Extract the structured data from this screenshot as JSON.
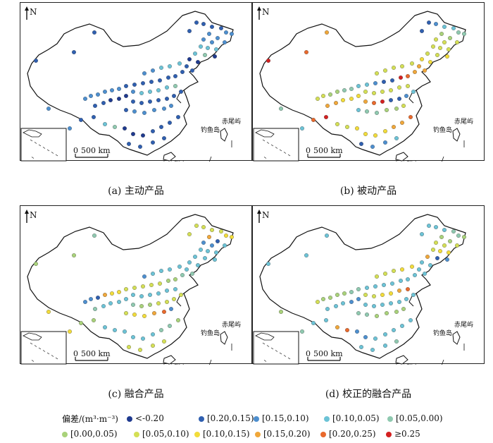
{
  "north_label": "N",
  "scale_label": "500 km",
  "scale_zero": "0",
  "place_labels": {
    "chiwei": "赤尾屿",
    "diaoyu": "钓鱼岛",
    "nansha": "东沙群岛"
  },
  "legend": {
    "title": "偏差/(m³·m⁻³)",
    "classes": [
      {
        "label": "<-0.20",
        "color": "#1f3a8f"
      },
      {
        "label": "[0.20,0.15)",
        "color": "#2f5fb0"
      },
      {
        "label": "[0.15,0.10)",
        "color": "#4d8fcf"
      },
      {
        "label": "[0.10,0.05)",
        "color": "#6cc3d6"
      },
      {
        "label": "[0.05,0.00)",
        "color": "#8fc9b0"
      },
      {
        "label": "[0.00,0.05)",
        "color": "#a9d27a"
      },
      {
        "label": "[0.05,0.10)",
        "color": "#d4df55"
      },
      {
        "label": "[0.10,0.15)",
        "color": "#f2dc3a"
      },
      {
        "label": "[0.15,0.20)",
        "color": "#f0a73a"
      },
      {
        "label": "[0.20,0.25)",
        "color": "#e9692c"
      },
      {
        "label": "≥0.25",
        "color": "#d42020"
      }
    ]
  },
  "panels": [
    {
      "caption": "(a) 主动产品",
      "mix": [
        0.12,
        0.38,
        0.28,
        0.18,
        0.04,
        0,
        0,
        0,
        0,
        0,
        0
      ]
    },
    {
      "caption": "(b) 被动产品",
      "mix": [
        0,
        0.05,
        0.07,
        0.08,
        0.08,
        0.08,
        0.3,
        0.14,
        0.1,
        0.06,
        0.04
      ]
    },
    {
      "caption": "(c) 融合产品",
      "mix": [
        0,
        0.03,
        0.07,
        0.4,
        0.08,
        0.1,
        0.18,
        0.08,
        0.04,
        0.02,
        0
      ]
    },
    {
      "caption": "(d) 校正的融合产品",
      "mix": [
        0,
        0.02,
        0.06,
        0.42,
        0.08,
        0.14,
        0.14,
        0.08,
        0.04,
        0.02,
        0
      ]
    }
  ]
}
